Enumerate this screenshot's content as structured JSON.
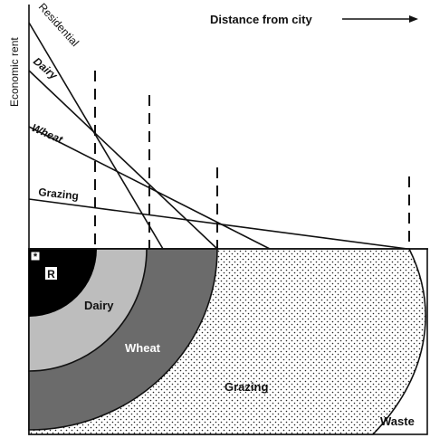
{
  "axes": {
    "y_label": "Economic rent",
    "x_label": "Distance from city"
  },
  "rent_lines": [
    "Residential",
    "Dairy",
    "Wheat",
    "Grazing"
  ],
  "zones": {
    "center": "R",
    "marker": "*",
    "labels": [
      "Dairy",
      "Wheat",
      "Grazing",
      "Waste"
    ]
  }
}
